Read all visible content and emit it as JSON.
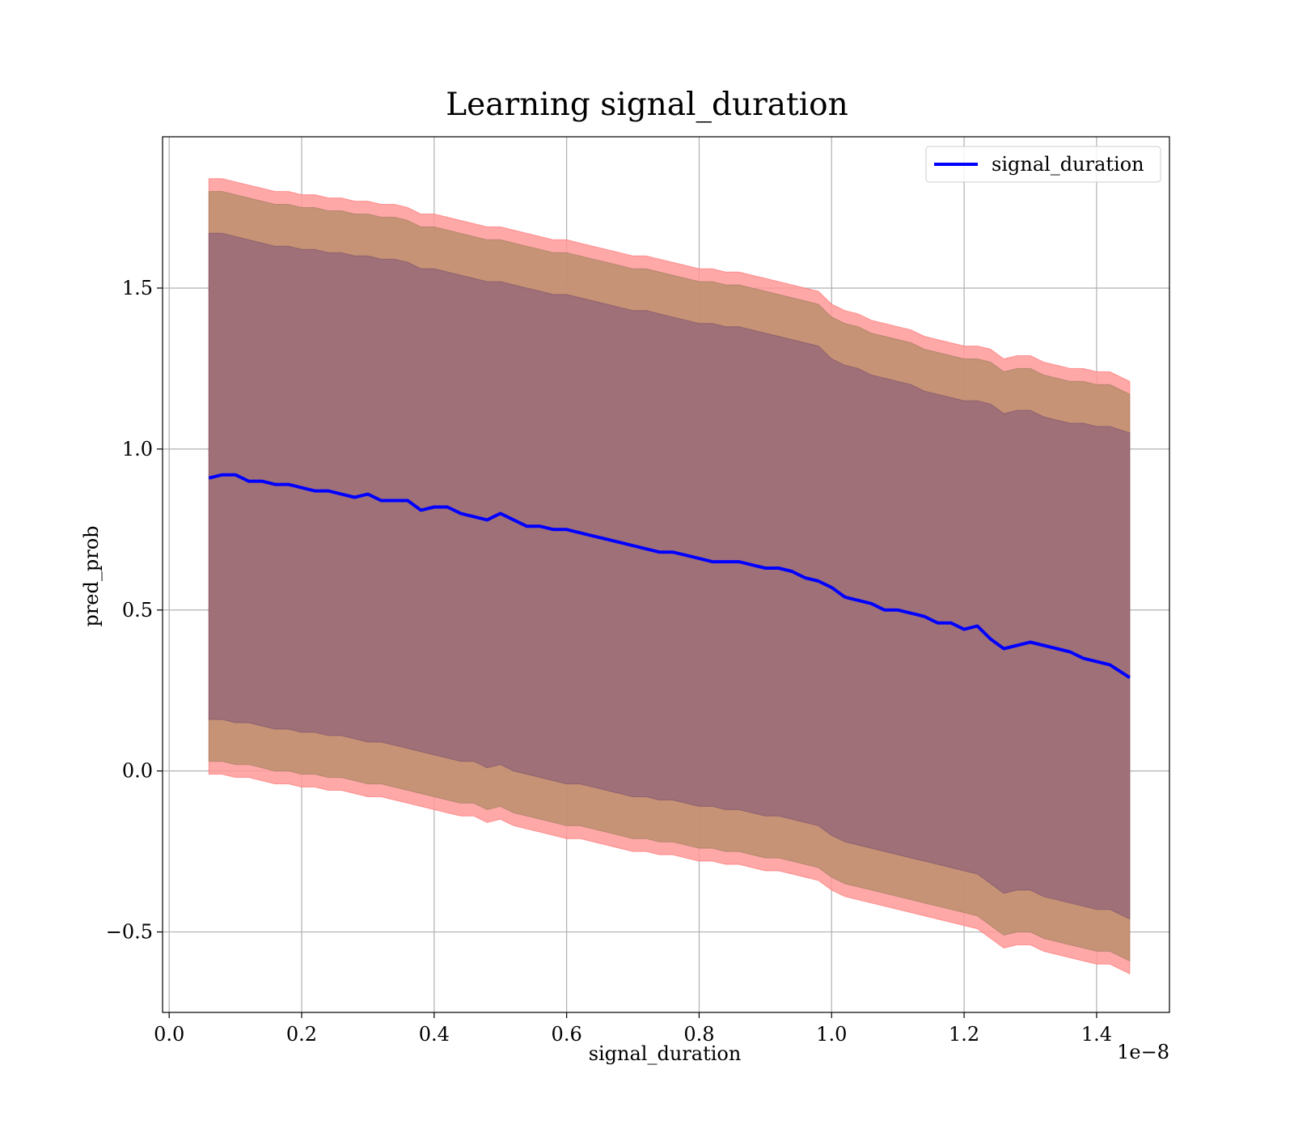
{
  "chart_data": {
    "type": "line",
    "title": "Learning signal_duration",
    "xlabel": "signal_duration",
    "ylabel": "pred_prob",
    "x_offset_label": "1e−8",
    "xlim": [
      -0.01,
      1.51
    ],
    "ylim": [
      -0.75,
      1.97
    ],
    "x_ticks": [
      0.0,
      0.2,
      0.4,
      0.6,
      0.8,
      1.0,
      1.2,
      1.4
    ],
    "x_tick_labels": [
      "0.0",
      "0.2",
      "0.4",
      "0.6",
      "0.8",
      "1.0",
      "1.2",
      "1.4"
    ],
    "y_ticks": [
      -0.5,
      0.0,
      0.5,
      1.0,
      1.5
    ],
    "y_tick_labels": [
      "−0.5",
      "0.0",
      "0.5",
      "1.0",
      "1.5"
    ],
    "grid": true,
    "legend": {
      "position": "top-right",
      "entries": [
        "signal_duration"
      ]
    },
    "colors": {
      "line": "#0000ff",
      "outer_band": "#ff9999",
      "middle_band": "#c09070",
      "inner_band": "#a07078"
    },
    "series": [
      {
        "name": "signal_duration",
        "x": [
          0.06,
          0.08,
          0.1,
          0.12,
          0.14,
          0.16,
          0.18,
          0.2,
          0.22,
          0.24,
          0.26,
          0.28,
          0.3,
          0.32,
          0.34,
          0.36,
          0.38,
          0.4,
          0.42,
          0.44,
          0.46,
          0.48,
          0.5,
          0.52,
          0.54,
          0.56,
          0.58,
          0.6,
          0.62,
          0.64,
          0.66,
          0.68,
          0.7,
          0.72,
          0.74,
          0.76,
          0.78,
          0.8,
          0.82,
          0.84,
          0.86,
          0.88,
          0.9,
          0.92,
          0.94,
          0.96,
          0.98,
          1.0,
          1.02,
          1.04,
          1.06,
          1.08,
          1.1,
          1.12,
          1.14,
          1.16,
          1.18,
          1.2,
          1.22,
          1.24,
          1.26,
          1.28,
          1.3,
          1.32,
          1.34,
          1.36,
          1.38,
          1.4,
          1.42,
          1.45
        ],
        "y": [
          0.91,
          0.92,
          0.92,
          0.9,
          0.9,
          0.89,
          0.89,
          0.88,
          0.87,
          0.87,
          0.86,
          0.85,
          0.86,
          0.84,
          0.84,
          0.84,
          0.81,
          0.82,
          0.82,
          0.8,
          0.79,
          0.78,
          0.8,
          0.78,
          0.76,
          0.76,
          0.75,
          0.75,
          0.74,
          0.73,
          0.72,
          0.71,
          0.7,
          0.69,
          0.68,
          0.68,
          0.67,
          0.66,
          0.65,
          0.65,
          0.65,
          0.64,
          0.63,
          0.63,
          0.62,
          0.6,
          0.59,
          0.57,
          0.54,
          0.53,
          0.52,
          0.5,
          0.5,
          0.49,
          0.48,
          0.46,
          0.46,
          0.44,
          0.45,
          0.41,
          0.38,
          0.39,
          0.4,
          0.39,
          0.38,
          0.37,
          0.35,
          0.34,
          0.33,
          0.29
        ]
      }
    ],
    "bands": [
      {
        "upper": [
          1.84,
          1.84,
          1.83,
          1.82,
          1.81,
          1.8,
          1.8,
          1.79,
          1.79,
          1.78,
          1.78,
          1.77,
          1.77,
          1.76,
          1.76,
          1.75,
          1.73,
          1.73,
          1.72,
          1.71,
          1.7,
          1.69,
          1.69,
          1.68,
          1.67,
          1.66,
          1.65,
          1.65,
          1.64,
          1.63,
          1.62,
          1.61,
          1.6,
          1.6,
          1.59,
          1.58,
          1.57,
          1.56,
          1.56,
          1.55,
          1.55,
          1.54,
          1.53,
          1.52,
          1.51,
          1.5,
          1.49,
          1.45,
          1.43,
          1.42,
          1.4,
          1.39,
          1.38,
          1.37,
          1.35,
          1.34,
          1.33,
          1.32,
          1.32,
          1.31,
          1.28,
          1.29,
          1.29,
          1.27,
          1.26,
          1.25,
          1.25,
          1.24,
          1.24,
          1.21
        ],
        "lower": [
          -0.01,
          -0.01,
          -0.02,
          -0.02,
          -0.03,
          -0.04,
          -0.04,
          -0.05,
          -0.05,
          -0.06,
          -0.06,
          -0.07,
          -0.08,
          -0.08,
          -0.09,
          -0.1,
          -0.11,
          -0.12,
          -0.13,
          -0.14,
          -0.14,
          -0.16,
          -0.15,
          -0.17,
          -0.18,
          -0.19,
          -0.2,
          -0.21,
          -0.21,
          -0.22,
          -0.23,
          -0.24,
          -0.25,
          -0.25,
          -0.26,
          -0.26,
          -0.27,
          -0.28,
          -0.28,
          -0.29,
          -0.29,
          -0.3,
          -0.31,
          -0.31,
          -0.32,
          -0.33,
          -0.34,
          -0.37,
          -0.39,
          -0.4,
          -0.41,
          -0.42,
          -0.43,
          -0.44,
          -0.45,
          -0.46,
          -0.47,
          -0.48,
          -0.49,
          -0.52,
          -0.55,
          -0.54,
          -0.54,
          -0.56,
          -0.57,
          -0.58,
          -0.59,
          -0.6,
          -0.6,
          -0.63
        ]
      },
      {
        "upper": [
          1.8,
          1.8,
          1.79,
          1.78,
          1.77,
          1.76,
          1.76,
          1.75,
          1.75,
          1.74,
          1.74,
          1.73,
          1.73,
          1.72,
          1.72,
          1.71,
          1.69,
          1.69,
          1.68,
          1.67,
          1.66,
          1.65,
          1.65,
          1.64,
          1.63,
          1.62,
          1.61,
          1.61,
          1.6,
          1.59,
          1.58,
          1.57,
          1.56,
          1.56,
          1.55,
          1.54,
          1.53,
          1.52,
          1.52,
          1.51,
          1.51,
          1.5,
          1.49,
          1.48,
          1.47,
          1.46,
          1.45,
          1.41,
          1.39,
          1.38,
          1.36,
          1.35,
          1.34,
          1.33,
          1.31,
          1.3,
          1.29,
          1.28,
          1.28,
          1.27,
          1.24,
          1.25,
          1.25,
          1.23,
          1.22,
          1.21,
          1.21,
          1.2,
          1.2,
          1.17
        ],
        "lower": [
          0.03,
          0.03,
          0.02,
          0.02,
          0.01,
          0.0,
          0.0,
          -0.01,
          -0.01,
          -0.02,
          -0.02,
          -0.03,
          -0.04,
          -0.04,
          -0.05,
          -0.06,
          -0.07,
          -0.08,
          -0.09,
          -0.1,
          -0.1,
          -0.12,
          -0.11,
          -0.13,
          -0.14,
          -0.15,
          -0.16,
          -0.17,
          -0.17,
          -0.18,
          -0.19,
          -0.2,
          -0.21,
          -0.21,
          -0.22,
          -0.22,
          -0.23,
          -0.24,
          -0.24,
          -0.25,
          -0.25,
          -0.26,
          -0.27,
          -0.27,
          -0.28,
          -0.29,
          -0.3,
          -0.33,
          -0.35,
          -0.36,
          -0.37,
          -0.38,
          -0.39,
          -0.4,
          -0.41,
          -0.42,
          -0.43,
          -0.44,
          -0.45,
          -0.48,
          -0.51,
          -0.5,
          -0.5,
          -0.52,
          -0.53,
          -0.54,
          -0.55,
          -0.56,
          -0.56,
          -0.59
        ]
      },
      {
        "upper": [
          1.67,
          1.67,
          1.66,
          1.65,
          1.64,
          1.63,
          1.63,
          1.62,
          1.62,
          1.61,
          1.61,
          1.6,
          1.6,
          1.59,
          1.59,
          1.58,
          1.56,
          1.56,
          1.55,
          1.54,
          1.53,
          1.52,
          1.52,
          1.51,
          1.5,
          1.49,
          1.48,
          1.48,
          1.47,
          1.46,
          1.45,
          1.44,
          1.43,
          1.43,
          1.42,
          1.41,
          1.4,
          1.39,
          1.39,
          1.38,
          1.38,
          1.37,
          1.36,
          1.35,
          1.34,
          1.33,
          1.32,
          1.28,
          1.26,
          1.25,
          1.23,
          1.22,
          1.21,
          1.2,
          1.18,
          1.17,
          1.16,
          1.15,
          1.15,
          1.14,
          1.11,
          1.12,
          1.12,
          1.1,
          1.09,
          1.08,
          1.08,
          1.07,
          1.07,
          1.05
        ],
        "lower": [
          0.16,
          0.16,
          0.15,
          0.15,
          0.14,
          0.13,
          0.13,
          0.12,
          0.12,
          0.11,
          0.11,
          0.1,
          0.09,
          0.09,
          0.08,
          0.07,
          0.06,
          0.05,
          0.04,
          0.03,
          0.03,
          0.01,
          0.02,
          0.0,
          -0.01,
          -0.02,
          -0.03,
          -0.04,
          -0.04,
          -0.05,
          -0.06,
          -0.07,
          -0.08,
          -0.08,
          -0.09,
          -0.09,
          -0.1,
          -0.11,
          -0.11,
          -0.12,
          -0.12,
          -0.13,
          -0.14,
          -0.14,
          -0.15,
          -0.16,
          -0.17,
          -0.2,
          -0.22,
          -0.23,
          -0.24,
          -0.25,
          -0.26,
          -0.27,
          -0.28,
          -0.29,
          -0.3,
          -0.31,
          -0.32,
          -0.35,
          -0.38,
          -0.37,
          -0.37,
          -0.39,
          -0.4,
          -0.41,
          -0.42,
          -0.43,
          -0.43,
          -0.46
        ]
      }
    ]
  }
}
